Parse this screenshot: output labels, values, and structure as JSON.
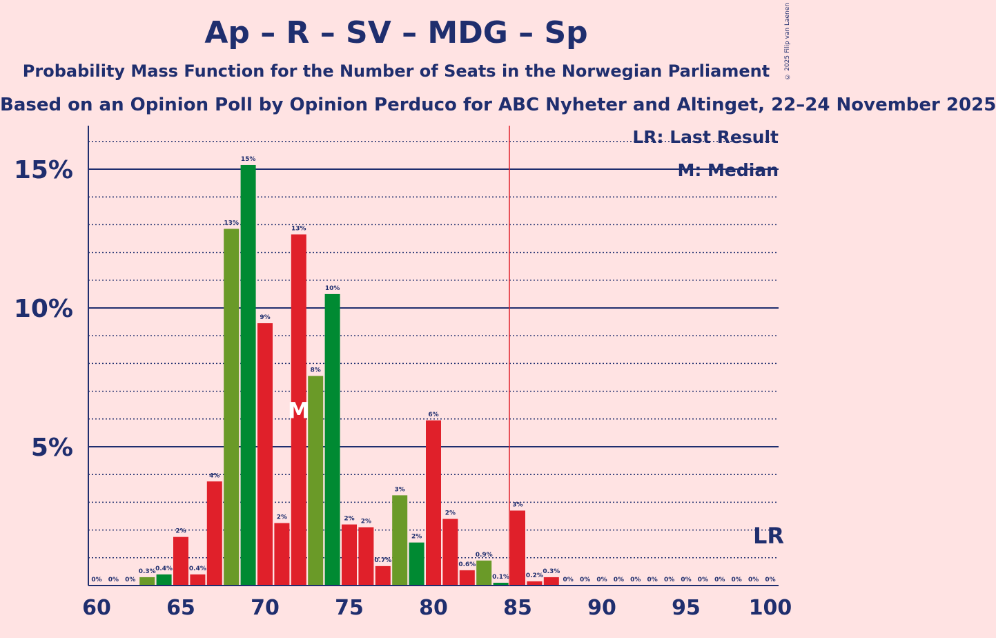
{
  "title": "Ap – R – SV – MDG – Sp",
  "subtitle": "Probability Mass Function for the Number of Seats in the Norwegian Parliament",
  "source": "Based on an Opinion Poll by Opinion Perduco for ABC Nyheter and Altinget, 22–24 November 2025",
  "copyright": "© 2025 Filip van Laenen",
  "legend": {
    "last_result": "LR: Last Result",
    "median": "M: Median"
  },
  "markers": {
    "last_result_label": "LR",
    "median_label": "M"
  },
  "colors": {
    "background": "#FFE3E3",
    "text": "#1F2E6E",
    "red": "#E0202A",
    "green": "#008A32",
    "olive": "#6A9A28",
    "lr_line": "#E0202A"
  },
  "chart_data": {
    "type": "bar",
    "x": [
      60,
      61,
      62,
      63,
      64,
      65,
      66,
      67,
      68,
      69,
      70,
      71,
      72,
      73,
      74,
      75,
      76,
      77,
      78,
      79,
      80,
      81,
      82,
      83,
      84,
      85,
      86,
      87,
      88,
      89,
      90,
      91,
      92,
      93,
      94,
      95,
      96,
      97,
      98,
      99,
      100
    ],
    "values": [
      0,
      0,
      0,
      0.3,
      0.4,
      1.75,
      0.4,
      3.75,
      12.85,
      15.15,
      9.45,
      2.25,
      12.65,
      7.55,
      10.5,
      2.2,
      2.1,
      0.7,
      3.25,
      1.55,
      5.95,
      2.4,
      0.55,
      0.9,
      0.1,
      2.7,
      0.15,
      0.3,
      0,
      0,
      0,
      0,
      0,
      0,
      0,
      0,
      0,
      0,
      0,
      0,
      0
    ],
    "labels": [
      "0%",
      "0%",
      "0%",
      "0.3%",
      "0.4%",
      "2%",
      "0.4%",
      "4%",
      "13%",
      "15%",
      "9%",
      "2%",
      "13%",
      "8%",
      "10%",
      "2%",
      "2%",
      "0.7%",
      "3%",
      "2%",
      "6%",
      "2%",
      "0.6%",
      "0.9%",
      "0.1%",
      "3%",
      "0.2%",
      "0.3%",
      "0%",
      "0%",
      "0%",
      "0%",
      "0%",
      "0%",
      "0%",
      "0%",
      "0%",
      "0%",
      "0%",
      "0%",
      "0%"
    ],
    "colors": [
      "red",
      "red",
      "red",
      "olive",
      "green",
      "red",
      "red",
      "red",
      "olive",
      "green",
      "red",
      "red",
      "red",
      "olive",
      "green",
      "red",
      "red",
      "red",
      "olive",
      "green",
      "red",
      "red",
      "red",
      "olive",
      "green",
      "red",
      "red",
      "red",
      "red",
      "red",
      "red",
      "red",
      "red",
      "red",
      "red",
      "red",
      "red",
      "red",
      "red",
      "red",
      "red"
    ],
    "x_ticks": [
      "60",
      "65",
      "70",
      "75",
      "80",
      "85",
      "90",
      "95",
      "100"
    ],
    "y_ticks": [
      "5%",
      "10%",
      "15%"
    ],
    "ylim": [
      0,
      16.5
    ],
    "last_result": 85,
    "median": 72
  }
}
